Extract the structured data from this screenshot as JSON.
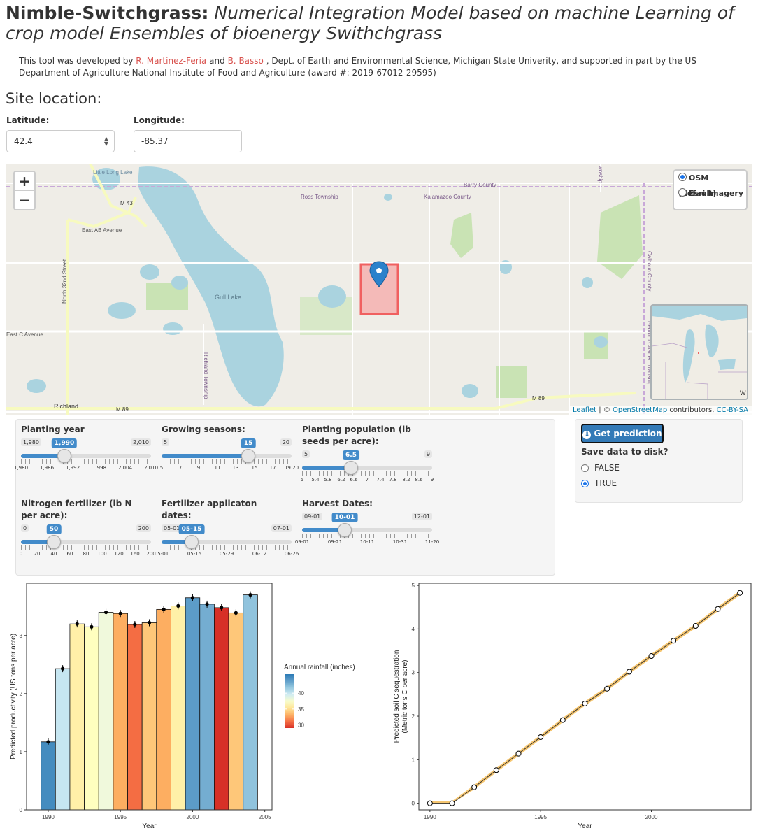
{
  "header": {
    "title_bold": "Nimble-Switchgrass:",
    "title_italic": "Numerical Integration Model based on machine Learning of crop model Ensembles of bioenergy Swithchgrass",
    "credits_pre": "This tool was developed by",
    "author1": "R. Martinez-Feria",
    "credits_and": "and",
    "author2": "B. Basso",
    "credits_post": ", Dept. of Earth and Environmental Science, Michigan State Univerity, and supported in part by the US Department of Agriculture National Institute of Food and Agriculture (award #: 2019-67012-29595)"
  },
  "site": {
    "heading": "Site location:",
    "lat_label": "Latitude:",
    "lat_value": "42.4",
    "lon_label": "Longitude:",
    "lon_value": "-85.37"
  },
  "map": {
    "zoom_in": "+",
    "zoom_out": "−",
    "layers": [
      {
        "label": "OSM (default)",
        "checked": true
      },
      {
        "label": "Esri Imagery",
        "checked": false
      }
    ],
    "place_labels": [
      "Little Long Lake",
      "M 43",
      "East AB Avenue",
      "North 32nd Street",
      "Gull Lake",
      "Ross Township",
      "Kalamazoo County",
      "Barry County",
      "Calhoun County",
      "Bedford Charter Township",
      "East C Avenue",
      "Richland Township",
      "Richland",
      "M 89",
      "M 89",
      "wnship",
      "W"
    ],
    "attribution_leaflet": "Leaflet",
    "attribution_mid": " | © ",
    "attribution_osm": "OpenStreetMap",
    "attribution_contrib": " contributors, ",
    "attribution_license": "CC-BY-SA"
  },
  "sliders": [
    {
      "label": "Planting year",
      "min": "1,980",
      "max": "2,010",
      "value": "1,990",
      "frac": 0.333,
      "grid": [
        "1,980",
        "1,986",
        "1,992",
        "1,998",
        "2,004",
        "2,010"
      ]
    },
    {
      "label": "Growing seasons:",
      "min": "5",
      "max": "20",
      "value": "15",
      "frac": 0.667,
      "grid": [
        "5",
        "7",
        "9",
        "11",
        "13",
        "15",
        "17",
        "19 20"
      ]
    },
    {
      "label": "Planting population (lb seeds per acre):",
      "min": "5",
      "max": "9",
      "value": "6.5",
      "frac": 0.375,
      "grid": [
        "5",
        "5.4",
        "5.8",
        "6.2",
        "6.6",
        "7",
        "7.4",
        "7.8",
        "8.2",
        "8.6",
        "9"
      ]
    },
    {
      "label": "Nitrogen fertilizer (lb N per acre):",
      "min": "0",
      "max": "200",
      "value": "50",
      "frac": 0.25,
      "grid": [
        "0",
        "20",
        "40",
        "60",
        "80",
        "100",
        "120",
        "160",
        "200"
      ]
    },
    {
      "label": "Fertilizer applicaton dates:",
      "min": "05-01",
      "max": "07-01",
      "value": "05-15",
      "frac": 0.23,
      "grid": [
        "05-01",
        "05-15",
        "05-29",
        "06-12",
        "06-26"
      ]
    },
    {
      "label": "Harvest Dates:",
      "min": "09-01",
      "max": "12-01",
      "value": "10-01",
      "frac": 0.33,
      "grid": [
        "09-01",
        "09-21",
        "10-11",
        "10-31",
        "11-20"
      ]
    }
  ],
  "actions": {
    "get_prediction": "Get prediction",
    "save_label": "Save data to disk?",
    "options": [
      {
        "label": "FALSE",
        "checked": false
      },
      {
        "label": "TRUE",
        "checked": true
      }
    ]
  },
  "chart_data": [
    {
      "type": "bar",
      "xlabel": "Year",
      "ylabel": "Predicted productivity (US tons per acre)",
      "xlim": [
        1988.5,
        2005.5
      ],
      "ylim": [
        0,
        3.9
      ],
      "xticks": [
        1990,
        1995,
        2000,
        2005
      ],
      "yticks": [
        0,
        1,
        2,
        3
      ],
      "x": [
        1990,
        1991,
        1992,
        1993,
        1994,
        1995,
        1996,
        1997,
        1998,
        1999,
        2000,
        2001,
        2002,
        2003,
        2004
      ],
      "values": [
        1.17,
        2.43,
        3.2,
        3.15,
        3.4,
        3.38,
        3.19,
        3.22,
        3.45,
        3.51,
        3.65,
        3.54,
        3.48,
        3.39,
        3.7
      ],
      "rainfall": [
        45,
        40,
        36,
        37,
        38,
        33,
        31,
        34,
        33,
        36,
        44,
        43,
        29,
        34,
        42
      ],
      "legend": {
        "title": "Annual rainfall (inches)",
        "ticks": [
          30,
          35,
          40
        ],
        "range": [
          29,
          46
        ],
        "placement": "right"
      }
    },
    {
      "type": "line",
      "xlabel": "Year",
      "ylabel": "Predicted soil C sequestration (Metric tons C per acre)",
      "xlim": [
        1989.5,
        2004.5
      ],
      "ylim": [
        -0.15,
        5.05
      ],
      "xticks": [
        1990,
        1995,
        2000
      ],
      "yticks": [
        0,
        1,
        2,
        3,
        4,
        5
      ],
      "x": [
        1990,
        1991,
        1992,
        1993,
        1994,
        1995,
        1996,
        1997,
        1998,
        1999,
        2000,
        2001,
        2002,
        2003,
        2004
      ],
      "values": [
        0.0,
        0.0,
        0.37,
        0.76,
        1.14,
        1.52,
        1.91,
        2.29,
        2.63,
        3.02,
        3.38,
        3.73,
        4.07,
        4.46,
        4.83
      ]
    }
  ]
}
